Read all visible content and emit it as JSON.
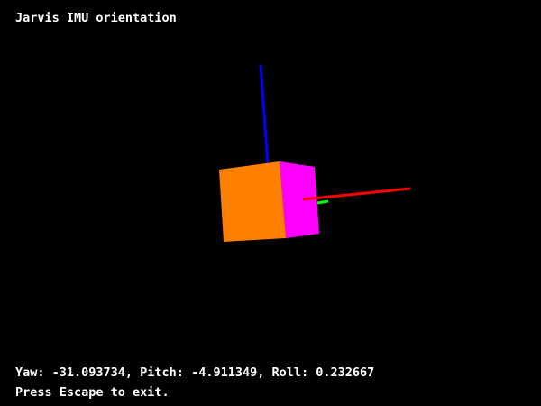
{
  "window": {
    "title": "Jarvis IMU orientation"
  },
  "orientation": {
    "yaw": "-31.093734",
    "pitch": "-4.911349",
    "roll": "0.232667",
    "readout": "Yaw: -31.093734, Pitch: -4.911349, Roll: 0.232667"
  },
  "instructions": {
    "exit_hint": "Press Escape to exit."
  },
  "colors": {
    "background": "#000000",
    "text": "#ffffff",
    "cube_front_face": "#ff8000",
    "cube_side_face": "#ff00ff",
    "x_axis": "#ff0000",
    "y_axis": "#00ff00",
    "z_axis": "#0000ff"
  }
}
